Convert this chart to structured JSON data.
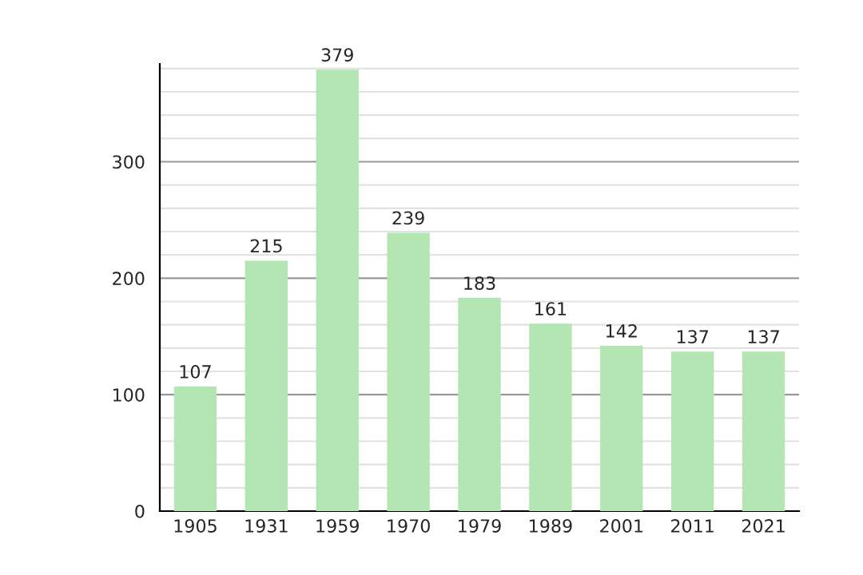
{
  "chart_data": {
    "type": "bar",
    "categories": [
      "1905",
      "1931",
      "1959",
      "1970",
      "1979",
      "1989",
      "2001",
      "2011",
      "2021"
    ],
    "values": [
      107,
      215,
      379,
      239,
      183,
      161,
      142,
      137,
      137
    ],
    "color": "#b3e6b3",
    "data_labels": true,
    "ylim": [
      0,
      384
    ],
    "yticks": [
      0,
      {
        "value": 20,
        "label": null
      },
      {
        "value": 40,
        "label": null
      },
      {
        "value": 60,
        "label": null
      },
      {
        "value": 80,
        "label": null
      },
      100,
      {
        "value": 120,
        "label": null
      },
      {
        "value": 140,
        "label": null
      },
      {
        "value": 160,
        "label": null
      },
      {
        "value": 180,
        "label": null
      },
      200,
      {
        "value": 220,
        "label": null
      },
      {
        "value": 240,
        "label": null
      },
      {
        "value": 260,
        "label": null
      },
      {
        "value": 280,
        "label": null
      },
      300,
      {
        "value": 320,
        "label": null
      },
      {
        "value": 340,
        "label": null
      },
      {
        "value": 360,
        "label": null
      },
      {
        "value": 380,
        "label": null
      }
    ],
    "grid": "y"
  }
}
